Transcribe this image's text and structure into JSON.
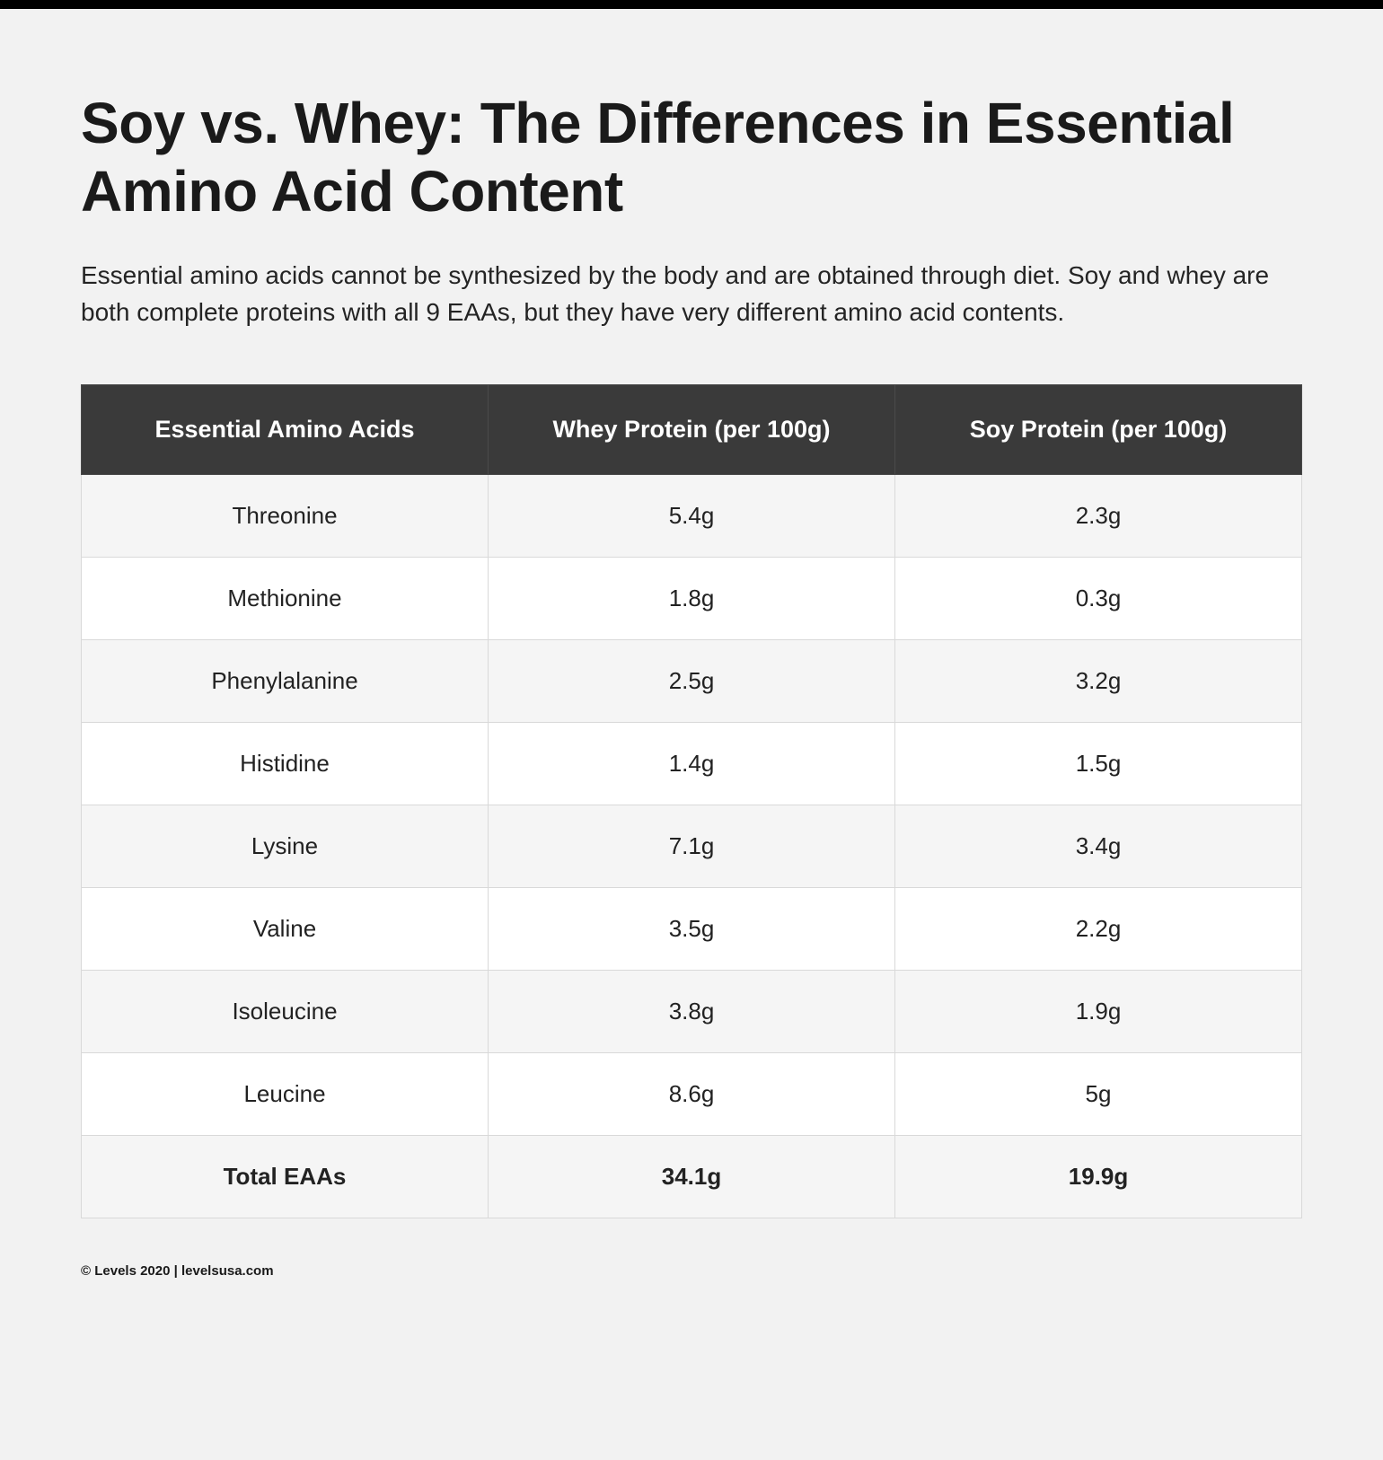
{
  "header": {
    "title": "Soy vs. Whey: The Differences in Essential Amino Acid Content",
    "description": "Essential amino acids cannot be synthesized by the body and are obtained through diet. Soy and whey are both complete proteins with all 9 EAAs, but they have very different amino acid contents."
  },
  "table": {
    "type": "table",
    "header_bg_color": "#3a3a3a",
    "header_text_color": "#ffffff",
    "row_even_bg": "#f5f5f5",
    "row_odd_bg": "#ffffff",
    "border_color": "#d9d9d9",
    "header_fontsize": 27,
    "cell_fontsize": 26,
    "columns": [
      "Essential Amino Acids",
      "Whey Protein (per 100g)",
      "Soy Protein (per 100g)"
    ],
    "rows": [
      {
        "name": "Threonine",
        "whey": "5.4g",
        "soy": "2.3g"
      },
      {
        "name": "Methionine",
        "whey": "1.8g",
        "soy": "0.3g"
      },
      {
        "name": "Phenylalanine",
        "whey": "2.5g",
        "soy": "3.2g"
      },
      {
        "name": "Histidine",
        "whey": "1.4g",
        "soy": "1.5g"
      },
      {
        "name": "Lysine",
        "whey": "7.1g",
        "soy": "3.4g"
      },
      {
        "name": "Valine",
        "whey": "3.5g",
        "soy": "2.2g"
      },
      {
        "name": "Isoleucine",
        "whey": "3.8g",
        "soy": "1.9g"
      },
      {
        "name": "Leucine",
        "whey": "8.6g",
        "soy": "5g"
      }
    ],
    "total": {
      "name": "Total EAAs",
      "whey": "34.1g",
      "soy": "19.9g"
    }
  },
  "footer": {
    "copyright": "© Levels 2020 | levelsusa.com"
  },
  "page_style": {
    "background_color": "#f2f2f2",
    "top_bar_color": "#000000",
    "title_fontsize": 64,
    "description_fontsize": 28,
    "footer_fontsize": 15
  }
}
